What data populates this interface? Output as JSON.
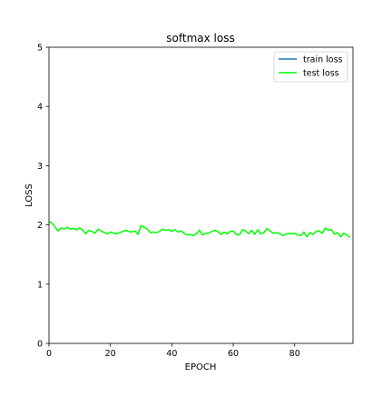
{
  "chart_data": {
    "type": "line",
    "title": "softmax loss",
    "xlabel": "EPOCH",
    "ylabel": "LOSS",
    "xlim": [
      0,
      99
    ],
    "ylim": [
      0,
      5
    ],
    "xticks": [
      0,
      20,
      40,
      60,
      80
    ],
    "yticks": [
      0,
      1,
      2,
      3,
      4,
      5
    ],
    "grid": false,
    "legend_position": "top-right",
    "series": [
      {
        "name": "train loss",
        "color": "#1f77b4",
        "x": [],
        "values": []
      },
      {
        "name": "test loss",
        "color": "#00ff00",
        "x": [
          0,
          1,
          2,
          3,
          4,
          5,
          6,
          7,
          8,
          9,
          10,
          11,
          12,
          13,
          14,
          15,
          16,
          17,
          18,
          19,
          20,
          21,
          22,
          23,
          24,
          25,
          26,
          27,
          28,
          29,
          30,
          31,
          32,
          33,
          34,
          35,
          36,
          37,
          38,
          39,
          40,
          41,
          42,
          43,
          44,
          45,
          46,
          47,
          48,
          49,
          50,
          51,
          52,
          53,
          54,
          55,
          56,
          57,
          58,
          59,
          60,
          61,
          62,
          63,
          64,
          65,
          66,
          67,
          68,
          69,
          70,
          71,
          72,
          73,
          74,
          75,
          76,
          77,
          78,
          79,
          80,
          81,
          82,
          83,
          84,
          85,
          86,
          87,
          88,
          89,
          90,
          91,
          92,
          93,
          94,
          95,
          96,
          97,
          98
        ],
        "values": [
          2.06,
          2.03,
          1.96,
          1.9,
          1.95,
          1.93,
          1.96,
          1.93,
          1.94,
          1.92,
          1.95,
          1.91,
          1.85,
          1.91,
          1.89,
          1.86,
          1.93,
          1.9,
          1.87,
          1.85,
          1.88,
          1.86,
          1.85,
          1.87,
          1.89,
          1.91,
          1.89,
          1.88,
          1.9,
          1.84,
          1.99,
          1.96,
          1.93,
          1.87,
          1.88,
          1.87,
          1.89,
          1.93,
          1.91,
          1.92,
          1.89,
          1.92,
          1.88,
          1.9,
          1.86,
          1.83,
          1.84,
          1.82,
          1.85,
          1.91,
          1.83,
          1.86,
          1.86,
          1.89,
          1.91,
          1.89,
          1.84,
          1.88,
          1.85,
          1.89,
          1.9,
          1.84,
          1.83,
          1.92,
          1.9,
          1.85,
          1.91,
          1.84,
          1.92,
          1.85,
          1.87,
          1.94,
          1.9,
          1.86,
          1.87,
          1.86,
          1.82,
          1.84,
          1.86,
          1.85,
          1.86,
          1.83,
          1.82,
          1.88,
          1.8,
          1.87,
          1.84,
          1.89,
          1.9,
          1.86,
          1.95,
          1.91,
          1.92,
          1.84,
          1.87,
          1.8,
          1.86,
          1.83,
          1.79
        ]
      }
    ]
  }
}
